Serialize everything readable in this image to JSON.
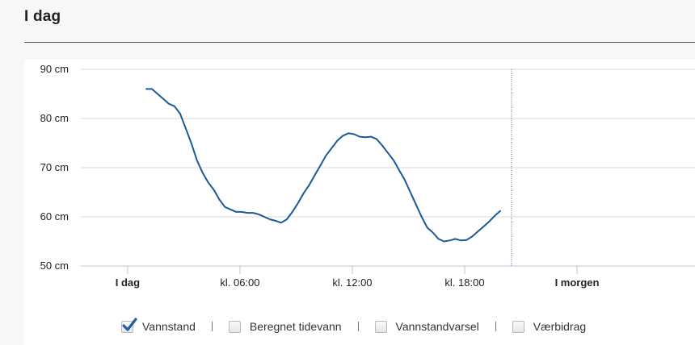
{
  "header": {
    "title": "I dag"
  },
  "chart_data": {
    "type": "line",
    "title": "",
    "ylabel": "",
    "xlabel": "",
    "y_unit": "cm",
    "ylim": [
      50,
      90
    ],
    "y_ticks": [
      {
        "value": 50,
        "label": "50 cm"
      },
      {
        "value": 60,
        "label": "60 cm"
      },
      {
        "value": 70,
        "label": "70 cm"
      },
      {
        "value": 80,
        "label": "80 cm"
      },
      {
        "value": 90,
        "label": "90 cm"
      }
    ],
    "xlim": [
      -2.5,
      30.3
    ],
    "x_ticks": [
      {
        "hour": 0,
        "label": "I dag",
        "bold": true
      },
      {
        "hour": 6,
        "label": "kl. 06:00",
        "bold": false
      },
      {
        "hour": 12,
        "label": "kl. 12:00",
        "bold": false
      },
      {
        "hour": 18,
        "label": "kl. 18:00",
        "bold": false
      },
      {
        "hour": 24,
        "label": "I morgen",
        "bold": true
      }
    ],
    "now_marker_hour": 20.5,
    "grid": true,
    "series": [
      {
        "name": "Vannstand",
        "color": "#1a5a96",
        "x": [
          1.0,
          1.3,
          1.6,
          1.9,
          2.2,
          2.5,
          2.8,
          3.1,
          3.4,
          3.7,
          4.0,
          4.3,
          4.6,
          4.9,
          5.2,
          5.5,
          5.8,
          6.1,
          6.4,
          6.7,
          7.0,
          7.3,
          7.6,
          7.9,
          8.2,
          8.5,
          8.8,
          9.1,
          9.4,
          9.7,
          10.0,
          10.3,
          10.6,
          10.9,
          11.2,
          11.5,
          11.8,
          12.1,
          12.4,
          12.7,
          13.0,
          13.3,
          13.6,
          13.9,
          14.2,
          14.5,
          14.8,
          15.1,
          15.4,
          15.7,
          16.0,
          16.3,
          16.6,
          16.9,
          17.2,
          17.5,
          17.8,
          18.1,
          18.4,
          18.7,
          19.0,
          19.3,
          19.6,
          19.9
        ],
        "values": [
          86,
          86,
          85,
          84,
          83,
          82.5,
          81,
          78,
          75,
          71.5,
          69,
          67,
          65.5,
          63.5,
          62,
          61.5,
          61,
          61,
          60.8,
          60.8,
          60.5,
          60,
          59.5,
          59.2,
          58.8,
          59.5,
          61,
          62.8,
          64.8,
          66.5,
          68.5,
          70.5,
          72.5,
          74,
          75.5,
          76.5,
          77,
          76.8,
          76.3,
          76.2,
          76.3,
          75.8,
          74.5,
          73,
          71.5,
          69.5,
          67.5,
          65,
          62.5,
          60,
          57.8,
          56.8,
          55.5,
          55,
          55.2,
          55.5,
          55.2,
          55.3,
          56,
          57,
          58,
          59,
          60.2,
          61.2
        ]
      }
    ]
  },
  "legend": {
    "items": [
      {
        "label": "Vannstand",
        "checked": true
      },
      {
        "label": "Beregnet tidevann",
        "checked": false
      },
      {
        "label": "Vannstandvarsel",
        "checked": false
      },
      {
        "label": "Værbidrag",
        "checked": false
      }
    ]
  },
  "colors": {
    "line": "#1a5a96",
    "grid": "#d8d8d8",
    "now_marker": "#3a6fa6",
    "check": "#1f5f9e"
  }
}
